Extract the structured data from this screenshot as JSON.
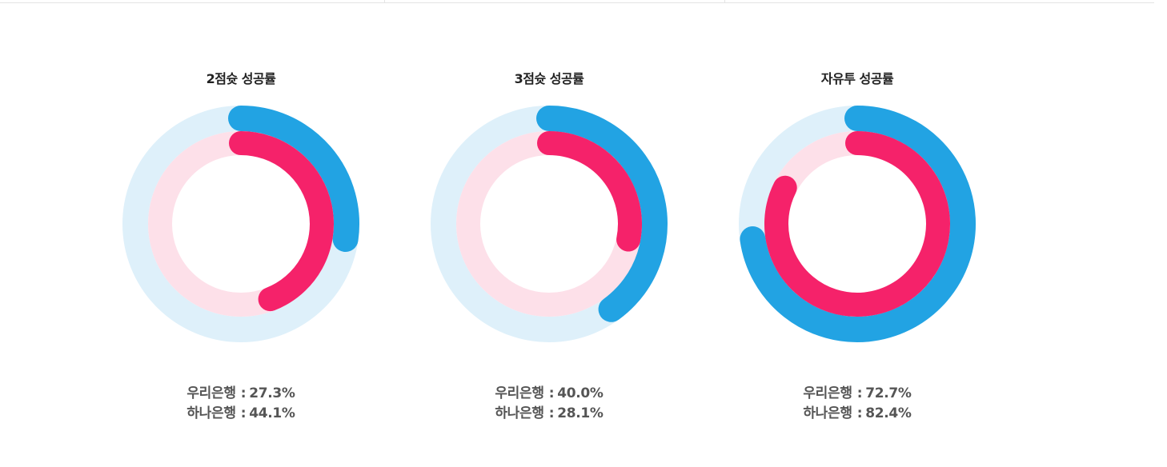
{
  "colors": {
    "series_outer": "#22a3e3",
    "series_outer_track": "#def0fa",
    "series_inner": "#f5226a",
    "series_inner_track": "#fde0e9"
  },
  "chart_data": [
    {
      "type": "radial-bar",
      "title": "2점슛 성공률",
      "series": [
        {
          "name": "우리은행",
          "value": 27.3,
          "label": "27.3%"
        },
        {
          "name": "하나은행",
          "value": 44.1,
          "label": "44.1%"
        }
      ],
      "ylim": [
        0,
        100
      ]
    },
    {
      "type": "radial-bar",
      "title": "3점슛 성공률",
      "series": [
        {
          "name": "우리은행",
          "value": 40.0,
          "label": "40.0%"
        },
        {
          "name": "하나은행",
          "value": 28.1,
          "label": "28.1%"
        }
      ],
      "ylim": [
        0,
        100
      ]
    },
    {
      "type": "radial-bar",
      "title": "자유투 성공률",
      "series": [
        {
          "name": "우리은행",
          "value": 72.7,
          "label": "72.7%"
        },
        {
          "name": "하나은행",
          "value": 82.4,
          "label": "82.4%"
        }
      ],
      "ylim": [
        0,
        100
      ]
    }
  ]
}
